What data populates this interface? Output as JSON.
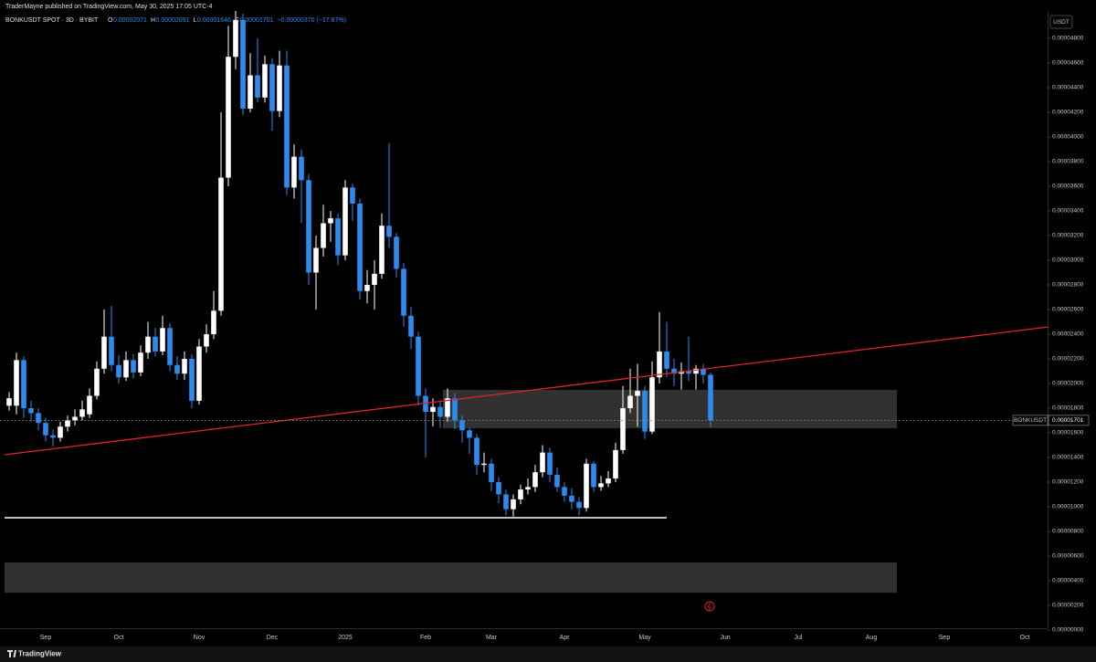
{
  "header": "TraderMayne published on TradingView.com, May 30, 2025 17:05 UTC-4",
  "legend": {
    "symbol": "BONKUSDT SPOT · 3D · BYBIT",
    "items": [
      {
        "key": "O",
        "value": "0.00002071"
      },
      {
        "key": "H",
        "value": "0.00002091"
      },
      {
        "key": "L",
        "value": "0.00001646"
      },
      {
        "key": "C",
        "value": "0.00001701"
      }
    ],
    "change": "−0.00000370 (−17.87%)"
  },
  "currency": "USDT",
  "last_price": {
    "symbol": "BONKUSDT",
    "value": "0.00001701"
  },
  "brand": "TradingView",
  "chart_data": {
    "type": "candlestick",
    "up_color": "#ffffff",
    "down_color": "#2a8cf0",
    "grid": false,
    "ylim": [
      0,
      5e-05
    ],
    "yticks": [
      {
        "value": 0,
        "label": "0.00000000"
      },
      {
        "value": 2e-06,
        "label": "0.00000200"
      },
      {
        "value": 4e-06,
        "label": "0.00000400"
      },
      {
        "value": 6e-06,
        "label": "0.00000600"
      },
      {
        "value": 8e-06,
        "label": "0.00000800"
      },
      {
        "value": 1e-05,
        "label": "0.00001000"
      },
      {
        "value": 1.2e-05,
        "label": "0.00001200"
      },
      {
        "value": 1.4e-05,
        "label": "0.00001400"
      },
      {
        "value": 1.6e-05,
        "label": "0.00001600"
      },
      {
        "value": 1.8e-05,
        "label": "0.00001800"
      },
      {
        "value": 2e-05,
        "label": "0.00002000"
      },
      {
        "value": 2.2e-05,
        "label": "0.00002200"
      },
      {
        "value": 2.4e-05,
        "label": "0.00002400"
      },
      {
        "value": 2.6e-05,
        "label": "0.00002600"
      },
      {
        "value": 2.8e-05,
        "label": "0.00002800"
      },
      {
        "value": 3e-05,
        "label": "0.00003000"
      },
      {
        "value": 3.2e-05,
        "label": "0.00003200"
      },
      {
        "value": 3.4e-05,
        "label": "0.00003400"
      },
      {
        "value": 3.6e-05,
        "label": "0.00003600"
      },
      {
        "value": 3.8e-05,
        "label": "0.00003800"
      },
      {
        "value": 4e-05,
        "label": "0.00004000"
      },
      {
        "value": 4.2e-05,
        "label": "0.00004200"
      },
      {
        "value": 4.4e-05,
        "label": "0.00004400"
      },
      {
        "value": 4.6e-05,
        "label": "0.00004600"
      },
      {
        "value": 4.8e-05,
        "label": "0.00004800"
      }
    ],
    "categories": [
      null,
      null,
      null,
      null,
      null,
      "Sep",
      null,
      null,
      null,
      null,
      null,
      null,
      null,
      null,
      null,
      "Oct",
      null,
      null,
      null,
      null,
      null,
      null,
      null,
      null,
      null,
      null,
      "Nov",
      null,
      null,
      null,
      null,
      null,
      null,
      null,
      null,
      null,
      "Dec",
      null,
      null,
      null,
      null,
      null,
      null,
      null,
      null,
      null,
      "2025",
      null,
      null,
      null,
      null,
      null,
      null,
      null,
      null,
      null,
      null,
      "Feb",
      null,
      null,
      null,
      null,
      null,
      null,
      null,
      null,
      "Mar",
      null,
      null,
      null,
      null,
      null,
      null,
      null,
      null,
      null,
      "Apr",
      null,
      null,
      null,
      null,
      null,
      null,
      null,
      null,
      null,
      null,
      "May",
      null,
      null,
      null,
      null,
      null,
      null,
      null,
      null,
      null,
      null,
      "Jun",
      null,
      null,
      null,
      null,
      null,
      null,
      null,
      null,
      null,
      "Jul",
      null,
      null,
      null,
      null,
      null,
      null,
      null,
      null,
      null,
      "Aug",
      null,
      null,
      null,
      null,
      null,
      null,
      null,
      null,
      null,
      "Sep",
      null,
      null,
      null,
      null,
      null,
      null,
      null,
      null,
      null,
      null,
      "Oct"
    ],
    "open": [
      1.82e-05,
      1.82e-05,
      2.19e-05,
      1.8e-05,
      1.76e-05,
      1.68e-05,
      1.58e-05,
      1.56e-05,
      1.65e-05,
      1.7e-05,
      1.73e-05,
      1.75e-05,
      1.9e-05,
      2.12e-05,
      2.38e-05,
      2.15e-05,
      2.05e-05,
      2.19e-05,
      2.09e-05,
      2.25e-05,
      2.38e-05,
      2.26e-05,
      2.45e-05,
      2.15e-05,
      2.08e-05,
      2.2e-05,
      1.86e-05,
      2.3e-05,
      2.4e-05,
      2.59e-05,
      3.67e-05,
      4.65e-05,
      4.95e-05,
      4.23e-05,
      4.5e-05,
      4.32e-05,
      4.59e-05,
      4.21e-05,
      4.58e-05,
      3.59e-05,
      3.84e-05,
      3.65e-05,
      2.9e-05,
      3.1e-05,
      3.3e-05,
      3.34e-05,
      3.04e-05,
      3.59e-05,
      3.46e-05,
      2.75e-05,
      2.8e-05,
      2.89e-05,
      3.28e-05,
      3.19e-05,
      2.93e-05,
      2.55e-05,
      2.38e-05,
      1.9e-05,
      1.77e-05,
      1.81e-05,
      1.73e-05,
      1.88e-05,
      1.7e-05,
      1.62e-05,
      1.56e-05,
      1.34e-05,
      1.35e-05,
      1.2e-05,
      1.1e-05,
      9.8e-06,
      1.06e-05,
      1.14e-05,
      1.16e-05,
      1.28e-05,
      1.44e-05,
      1.26e-05,
      1.16e-05,
      1.09e-05,
      1.04e-05,
      9.9e-06,
      1.35e-05,
      1.16e-05,
      1.19e-05,
      1.23e-05,
      1.46e-05,
      1.8e-05,
      1.9e-05,
      1.94e-05,
      1.61e-05,
      2.05e-05,
      2.26e-05,
      2.12e-05,
      2.08e-05,
      2.1e-05,
      2.08e-05,
      2.12e-05,
      2.071e-05,
      null,
      null,
      null,
      null,
      null,
      null,
      null,
      null,
      null,
      null,
      null,
      null,
      null,
      null,
      null,
      null,
      null,
      null,
      null,
      null,
      null,
      null,
      null,
      null,
      null,
      null,
      null,
      null,
      null,
      null,
      null,
      null,
      null,
      null,
      null,
      null,
      null,
      null,
      null,
      null,
      null,
      null,
      null
    ],
    "high": [
      1.93e-05,
      2.25e-05,
      2.22e-05,
      1.86e-05,
      1.8e-05,
      1.72e-05,
      1.63e-05,
      1.69e-05,
      1.74e-05,
      1.79e-05,
      1.86e-05,
      1.96e-05,
      2.18e-05,
      2.6e-05,
      2.63e-05,
      2.23e-05,
      2.26e-05,
      2.24e-05,
      2.31e-05,
      2.5e-05,
      2.45e-05,
      2.55e-05,
      2.49e-05,
      2.22e-05,
      2.26e-05,
      2.24e-05,
      2.36e-05,
      2.48e-05,
      2.75e-05,
      4.2e-05,
      4.9e-05,
      5.05e-05,
      5e-05,
      4.68e-05,
      4.8e-05,
      4.66e-05,
      4.64e-05,
      4.7e-05,
      4.7e-05,
      3.94e-05,
      3.9e-05,
      3.7e-05,
      3.2e-05,
      3.45e-05,
      3.4e-05,
      3.38e-05,
      3.65e-05,
      3.62e-05,
      3.5e-05,
      2.92e-05,
      3e-05,
      3.38e-05,
      3.95e-05,
      3.22e-05,
      2.98e-05,
      2.62e-05,
      2.42e-05,
      1.96e-05,
      1.88e-05,
      1.86e-05,
      1.96e-05,
      1.92e-05,
      1.74e-05,
      1.64e-05,
      1.59e-05,
      1.44e-05,
      1.39e-05,
      1.24e-05,
      1.14e-05,
      1.1e-05,
      1.18e-05,
      1.23e-05,
      1.34e-05,
      1.5e-05,
      1.48e-05,
      1.32e-05,
      1.2e-05,
      1.15e-05,
      1.08e-05,
      1.39e-05,
      1.37e-05,
      1.25e-05,
      1.29e-05,
      1.52e-05,
      1.98e-05,
      2.12e-05,
      2.16e-05,
      1.98e-05,
      2.18e-05,
      2.58e-05,
      2.5e-05,
      2.2e-05,
      2.17e-05,
      2.38e-05,
      2.15e-05,
      2.16e-05,
      2.091e-05,
      null,
      null,
      null,
      null,
      null,
      null,
      null,
      null,
      null,
      null,
      null,
      null,
      null,
      null,
      null,
      null,
      null,
      null,
      null,
      null,
      null,
      null,
      null,
      null,
      null,
      null,
      null,
      null,
      null,
      null,
      null,
      null,
      null,
      null,
      null,
      null,
      null,
      null,
      null,
      null,
      null,
      null,
      null
    ],
    "low": [
      1.78e-05,
      1.75e-05,
      1.72e-05,
      1.69e-05,
      1.62e-05,
      1.53e-05,
      1.49e-05,
      1.53e-05,
      1.61e-05,
      1.66e-05,
      1.7e-05,
      1.72e-05,
      1.87e-05,
      2.08e-05,
      2.1e-05,
      2e-05,
      2.02e-05,
      2.04e-05,
      2.06e-05,
      2.2e-05,
      2.22e-05,
      2.23e-05,
      2.1e-05,
      2.03e-05,
      2.03e-05,
      1.8e-05,
      1.83e-05,
      2.25e-05,
      2.36e-05,
      2.55e-05,
      3.6e-05,
      4.55e-05,
      4.18e-05,
      4.2e-05,
      4.28e-05,
      4.28e-05,
      4.05e-05,
      4.16e-05,
      3.53e-05,
      3.5e-05,
      3.3e-05,
      2.8e-05,
      2.6e-05,
      3.03e-05,
      3.15e-05,
      2.96e-05,
      3e-05,
      3.32e-05,
      2.68e-05,
      2.65e-05,
      2.6e-05,
      2.85e-05,
      3.1e-05,
      2.86e-05,
      2.46e-05,
      2.28e-05,
      1.82e-05,
      1.4e-05,
      1.65e-05,
      1.64e-05,
      1.69e-05,
      1.63e-05,
      1.52e-05,
      1.43e-05,
      1.26e-05,
      1.28e-05,
      1.13e-05,
      1.03e-05,
      9.3e-06,
      9.2e-06,
      1.02e-05,
      1.1e-05,
      1.12e-05,
      1.24e-05,
      1.2e-05,
      1.12e-05,
      1.04e-05,
      9.8e-06,
      9.3e-06,
      9.6e-06,
      1.12e-05,
      1.13e-05,
      1.16e-05,
      1.2e-05,
      1.43e-05,
      1.76e-05,
      1.65e-05,
      1.55e-05,
      1.59e-05,
      2e-05,
      2.05e-05,
      1.98e-05,
      1.95e-05,
      2.02e-05,
      1.95e-05,
      2e-05,
      1.646e-05,
      null,
      null,
      null,
      null,
      null,
      null,
      null,
      null,
      null,
      null,
      null,
      null,
      null,
      null,
      null,
      null,
      null,
      null,
      null,
      null,
      null,
      null,
      null,
      null,
      null,
      null,
      null,
      null,
      null,
      null,
      null,
      null,
      null,
      null,
      null,
      null,
      null,
      null,
      null,
      null,
      null,
      null,
      null
    ],
    "close": [
      1.88e-05,
      2.19e-05,
      1.8e-05,
      1.76e-05,
      1.68e-05,
      1.58e-05,
      1.56e-05,
      1.65e-05,
      1.7e-05,
      1.73e-05,
      1.79e-05,
      1.9e-05,
      2.12e-05,
      2.38e-05,
      2.15e-05,
      2.05e-05,
      2.19e-05,
      2.09e-05,
      2.25e-05,
      2.38e-05,
      2.26e-05,
      2.45e-05,
      2.15e-05,
      2.08e-05,
      2.2e-05,
      1.86e-05,
      2.3e-05,
      2.4e-05,
      2.59e-05,
      3.67e-05,
      4.65e-05,
      4.95e-05,
      4.23e-05,
      4.5e-05,
      4.32e-05,
      4.59e-05,
      4.21e-05,
      4.58e-05,
      3.59e-05,
      3.84e-05,
      3.65e-05,
      2.9e-05,
      3.1e-05,
      3.3e-05,
      3.34e-05,
      3.04e-05,
      3.59e-05,
      3.46e-05,
      2.75e-05,
      2.8e-05,
      2.89e-05,
      3.28e-05,
      3.19e-05,
      2.93e-05,
      2.55e-05,
      2.38e-05,
      1.9e-05,
      1.77e-05,
      1.81e-05,
      1.73e-05,
      1.88e-05,
      1.7e-05,
      1.62e-05,
      1.56e-05,
      1.34e-05,
      1.35e-05,
      1.2e-05,
      1.1e-05,
      9.8e-06,
      1.06e-05,
      1.14e-05,
      1.16e-05,
      1.28e-05,
      1.44e-05,
      1.26e-05,
      1.16e-05,
      1.09e-05,
      1.04e-05,
      9.9e-06,
      1.35e-05,
      1.16e-05,
      1.19e-05,
      1.23e-05,
      1.46e-05,
      1.8e-05,
      1.9e-05,
      1.94e-05,
      1.61e-05,
      2.05e-05,
      2.26e-05,
      2.12e-05,
      2.08e-05,
      2.1e-05,
      2.08e-05,
      2.12e-05,
      2.07e-05,
      1.701e-05,
      null,
      null,
      null,
      null,
      null,
      null,
      null,
      null,
      null,
      null,
      null,
      null,
      null,
      null,
      null,
      null,
      null,
      null,
      null,
      null,
      null,
      null,
      null,
      null,
      null,
      null,
      null,
      null,
      null,
      null,
      null,
      null,
      null,
      null,
      null,
      null,
      null,
      null,
      null,
      null,
      null,
      null,
      null
    ]
  }
}
